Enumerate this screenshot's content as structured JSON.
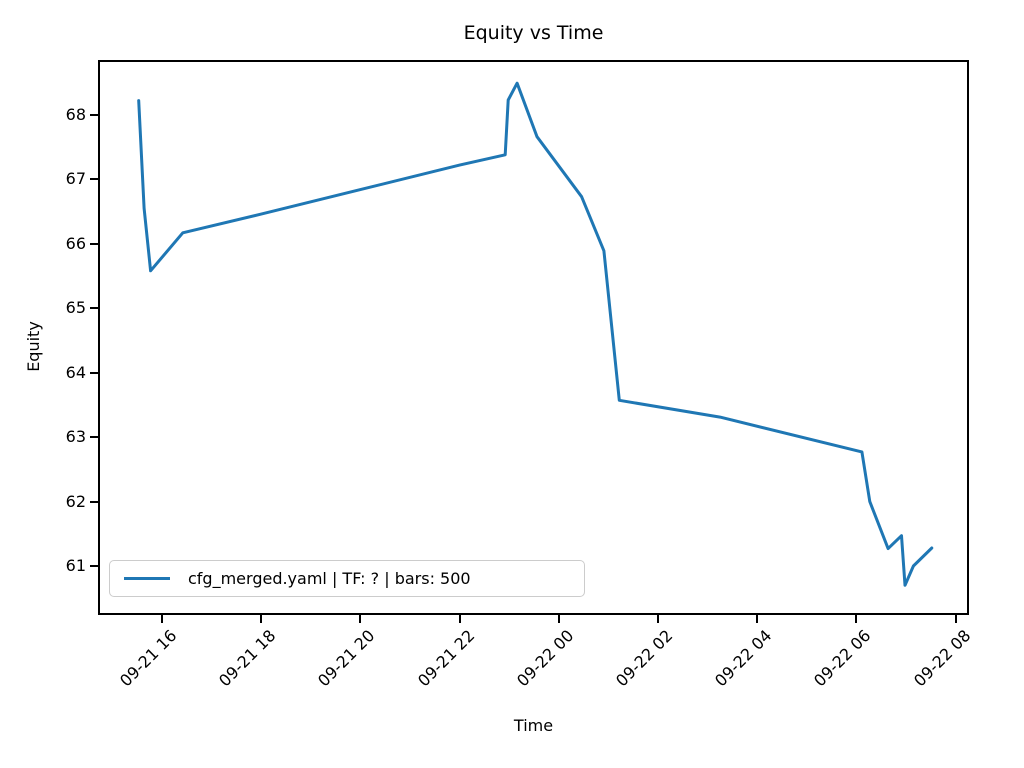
{
  "title": "Equity vs Time",
  "xlabel": "Time",
  "ylabel": "Equity",
  "legend": {
    "label": "cfg_merged.yaml | TF: ? | bars: 500"
  },
  "colors": {
    "line": "#1f77b4",
    "axis": "#000000",
    "background": "#ffffff",
    "legend_border": "#cccccc"
  },
  "chart_data": {
    "type": "line",
    "title": "Equity vs Time",
    "xlabel": "Time",
    "ylabel": "Equity",
    "grid": false,
    "legend_position": "lower left",
    "xlim_hours": [
      14.71,
      32.27
    ],
    "ylim": [
      60.24,
      68.85
    ],
    "y_ticks": [
      61,
      62,
      63,
      64,
      65,
      66,
      67,
      68
    ],
    "x_ticks": [
      {
        "hours": 16,
        "label": "09-21 16"
      },
      {
        "hours": 18,
        "label": "09-21 18"
      },
      {
        "hours": 20,
        "label": "09-21 20"
      },
      {
        "hours": 22,
        "label": "09-21 22"
      },
      {
        "hours": 24,
        "label": "09-22 00"
      },
      {
        "hours": 26,
        "label": "09-22 02"
      },
      {
        "hours": 28,
        "label": "09-22 04"
      },
      {
        "hours": 30,
        "label": "09-22 06"
      },
      {
        "hours": 32,
        "label": "09-22 08"
      }
    ],
    "series": [
      {
        "name": "cfg_merged.yaml | TF: ? | bars: 500",
        "color": "#1f77b4",
        "points": [
          {
            "time": "09-21 15:32",
            "hours": 15.53,
            "equity": 68.22
          },
          {
            "time": "09-21 15:38",
            "hours": 15.64,
            "equity": 66.55
          },
          {
            "time": "09-21 15:46",
            "hours": 15.77,
            "equity": 65.58
          },
          {
            "time": "09-21 16:25",
            "hours": 16.42,
            "equity": 66.17
          },
          {
            "time": "09-21 18:00",
            "hours": 18.0,
            "equity": 66.46
          },
          {
            "time": "09-21 20:00",
            "hours": 20.0,
            "equity": 66.84
          },
          {
            "time": "09-21 22:00",
            "hours": 22.0,
            "equity": 67.22
          },
          {
            "time": "09-21 22:55",
            "hours": 22.92,
            "equity": 67.38
          },
          {
            "time": "09-21 22:59",
            "hours": 22.98,
            "equity": 68.23
          },
          {
            "time": "09-21 23:10",
            "hours": 23.16,
            "equity": 68.49
          },
          {
            "time": "09-21 23:34",
            "hours": 23.56,
            "equity": 67.66
          },
          {
            "time": "09-22 00:28",
            "hours": 24.46,
            "equity": 66.73
          },
          {
            "time": "09-22 00:55",
            "hours": 24.91,
            "equity": 65.89
          },
          {
            "time": "09-22 01:13",
            "hours": 25.22,
            "equity": 63.57
          },
          {
            "time": "09-22 03:15",
            "hours": 27.25,
            "equity": 63.31
          },
          {
            "time": "09-22 06:07",
            "hours": 30.11,
            "equity": 62.77
          },
          {
            "time": "09-22 06:16",
            "hours": 30.27,
            "equity": 62.0
          },
          {
            "time": "09-22 06:38",
            "hours": 30.64,
            "equity": 61.27
          },
          {
            "time": "09-22 06:55",
            "hours": 30.91,
            "equity": 61.47
          },
          {
            "time": "09-22 06:59",
            "hours": 30.98,
            "equity": 60.7
          },
          {
            "time": "09-22 07:09",
            "hours": 31.15,
            "equity": 61.0
          },
          {
            "time": "09-22 07:31",
            "hours": 31.52,
            "equity": 61.28
          }
        ]
      }
    ]
  }
}
